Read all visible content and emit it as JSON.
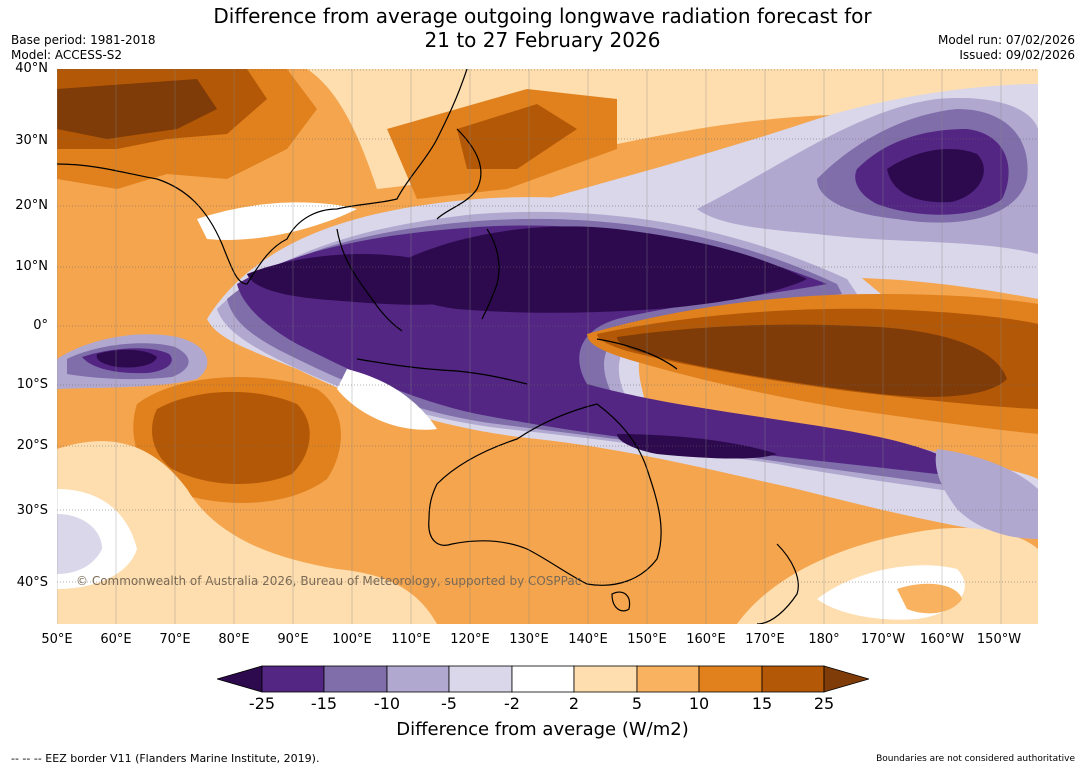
{
  "title": {
    "line1": "Difference from average outgoing longwave radiation forecast for",
    "line2": "21 to 27 February 2026"
  },
  "meta": {
    "base_period": "Base period: 1981-2018",
    "model": "Model: ACCESS-S2",
    "model_run": "Model run: 07/02/2026",
    "issued": "Issued: 09/02/2026"
  },
  "lat_labels": [
    "40°N",
    "30°N",
    "20°N",
    "10°N",
    "0°",
    "10°S",
    "20°S",
    "30°S",
    "40°S"
  ],
  "lon_labels": [
    "50°E",
    "60°E",
    "70°E",
    "80°E",
    "90°E",
    "100°E",
    "110°E",
    "120°E",
    "130°E",
    "140°E",
    "150°E",
    "160°E",
    "170°E",
    "180°",
    "170°W",
    "160°W",
    "150°W"
  ],
  "copyright": "© Commonwealth of Australia 2026, Bureau of Meteorology, supported by COSPPac",
  "legend": {
    "colors": [
      "#2d0a4e",
      "#532683",
      "#7f6ea9",
      "#b1a8d0",
      "#d9d7e9",
      "#ffffff",
      "#fedeaf",
      "#f9b25f",
      "#e0811e",
      "#b35806",
      "#7f3b08"
    ],
    "labels": [
      "-25",
      "-15",
      "-10",
      "-5",
      "-2",
      "2",
      "5",
      "10",
      "15",
      "25"
    ],
    "title": "Difference from average (W/m2)"
  },
  "footer": {
    "eez": "--  --  -- EEZ border V11 (Flanders Marine Institute, 2019).",
    "boundaries": "Boundaries are not considered authoritative"
  }
}
